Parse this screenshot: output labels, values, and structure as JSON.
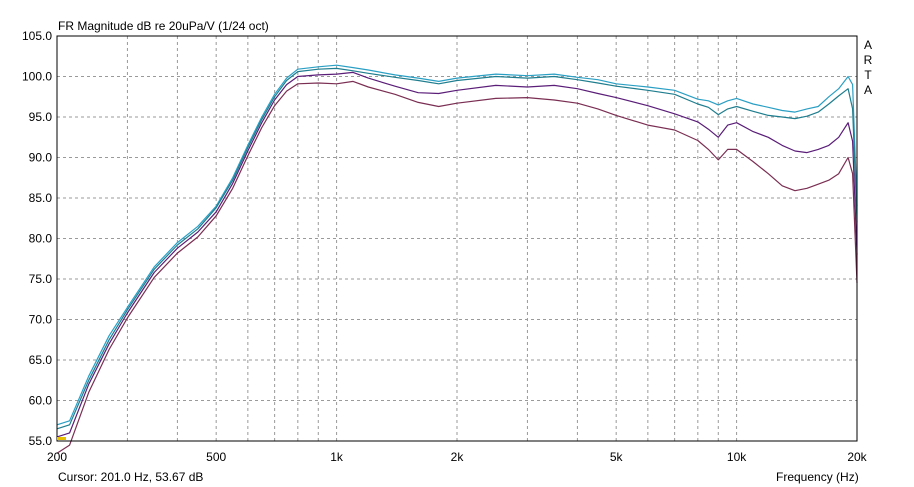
{
  "chart_data": {
    "type": "line",
    "title": "FR Magnitude dB re 20uPa/V (1/24 oct)",
    "xlabel": "Frequency (Hz)",
    "ylabel": "",
    "xscale": "log",
    "xlim": [
      200,
      20000
    ],
    "ylim": [
      55,
      105
    ],
    "grid": true,
    "x_ticks": [
      200,
      500,
      1000,
      2000,
      5000,
      10000,
      20000
    ],
    "x_tick_labels": [
      "200",
      "500",
      "1k",
      "2k",
      "5k",
      "10k",
      "20k"
    ],
    "y_ticks": [
      55,
      60,
      65,
      70,
      75,
      80,
      85,
      90,
      95,
      100,
      105
    ],
    "y_tick_labels": [
      "55.0",
      "60.0",
      "65.0",
      "70.0",
      "75.0",
      "80.0",
      "85.0",
      "90.0",
      "95.0",
      "100.0",
      "105.0"
    ],
    "series": [
      {
        "color": "#2a9fc4",
        "x": [
          200,
          215,
          240,
          270,
          300,
          350,
          400,
          450,
          500,
          550,
          600,
          650,
          700,
          750,
          800,
          900,
          1000,
          1100,
          1200,
          1400,
          1600,
          1800,
          2000,
          2500,
          3000,
          3500,
          4000,
          4500,
          5000,
          6000,
          7000,
          8000,
          8500,
          9000,
          9500,
          10000,
          11000,
          12000,
          13000,
          14000,
          15000,
          16000,
          17000,
          18000,
          19000,
          19500,
          20000
        ],
        "y": [
          57.0,
          57.5,
          63.0,
          68.0,
          71.5,
          76.5,
          79.5,
          81.5,
          84.0,
          87.5,
          91.5,
          95.0,
          97.8,
          99.8,
          100.9,
          101.2,
          101.4,
          101.1,
          100.8,
          100.2,
          99.8,
          99.4,
          99.8,
          100.3,
          100.1,
          100.3,
          99.9,
          99.6,
          99.1,
          98.7,
          98.3,
          97.2,
          97.0,
          96.5,
          97.0,
          97.3,
          96.6,
          96.2,
          95.8,
          95.6,
          96.0,
          96.3,
          97.5,
          98.5,
          100.0,
          99.0,
          84.0
        ]
      },
      {
        "color": "#1e7d8e",
        "x": [
          200,
          215,
          240,
          270,
          300,
          350,
          400,
          450,
          500,
          550,
          600,
          650,
          700,
          750,
          800,
          900,
          1000,
          1100,
          1200,
          1400,
          1600,
          1800,
          2000,
          2500,
          3000,
          3500,
          4000,
          4500,
          5000,
          6000,
          7000,
          8000,
          8500,
          9000,
          9500,
          10000,
          11000,
          12000,
          13000,
          14000,
          15000,
          16000,
          17000,
          18000,
          19000,
          19500,
          20000
        ],
        "y": [
          56.5,
          57.0,
          62.5,
          67.5,
          71.2,
          76.2,
          79.2,
          81.2,
          83.8,
          87.2,
          91.2,
          94.7,
          97.5,
          99.5,
          100.6,
          100.9,
          101.0,
          100.7,
          100.4,
          99.9,
          99.5,
          99.1,
          99.5,
          100.0,
          99.8,
          100.0,
          99.6,
          99.2,
          98.8,
          98.3,
          97.8,
          96.6,
          96.2,
          95.3,
          96.0,
          96.3,
          95.7,
          95.2,
          95.0,
          94.8,
          95.1,
          95.6,
          96.6,
          97.6,
          98.5,
          96.0,
          82.0
        ]
      },
      {
        "color": "#5a1d78",
        "x": [
          200,
          215,
          240,
          270,
          300,
          350,
          400,
          450,
          500,
          550,
          600,
          650,
          700,
          750,
          800,
          900,
          1000,
          1100,
          1200,
          1400,
          1600,
          1800,
          2000,
          2500,
          3000,
          3500,
          4000,
          4500,
          5000,
          6000,
          7000,
          8000,
          8500,
          9000,
          9500,
          10000,
          11000,
          12000,
          13000,
          14000,
          15000,
          16000,
          17000,
          18000,
          19000,
          19500,
          20000
        ],
        "y": [
          55.5,
          56.0,
          62.0,
          67.0,
          70.8,
          75.8,
          78.8,
          80.8,
          83.3,
          86.8,
          90.8,
          94.3,
          97.1,
          99.0,
          100.0,
          100.2,
          100.3,
          100.5,
          99.8,
          98.8,
          98.0,
          97.9,
          98.3,
          98.9,
          98.7,
          98.9,
          98.5,
          97.9,
          97.4,
          96.4,
          95.4,
          94.4,
          93.5,
          92.5,
          94.0,
          94.3,
          93.2,
          92.5,
          91.5,
          90.8,
          90.6,
          91.0,
          91.5,
          92.5,
          94.3,
          92.0,
          78.0
        ]
      },
      {
        "color": "#7a2e52",
        "x": [
          200,
          215,
          240,
          270,
          300,
          350,
          400,
          450,
          500,
          550,
          600,
          650,
          700,
          750,
          800,
          900,
          1000,
          1100,
          1200,
          1400,
          1600,
          1800,
          2000,
          2500,
          3000,
          3500,
          4000,
          4500,
          5000,
          6000,
          7000,
          8000,
          8500,
          9000,
          9500,
          10000,
          11000,
          12000,
          13000,
          14000,
          15000,
          16000,
          17000,
          18000,
          19000,
          19500,
          20000
        ],
        "y": [
          53.5,
          54.5,
          61.0,
          66.3,
          70.2,
          75.2,
          78.2,
          80.2,
          82.8,
          86.2,
          90.2,
          93.7,
          96.4,
          98.2,
          99.1,
          99.2,
          99.1,
          99.4,
          98.7,
          97.8,
          96.8,
          96.3,
          96.7,
          97.3,
          97.4,
          97.1,
          96.7,
          96.0,
          95.2,
          94.0,
          93.4,
          92.1,
          91.0,
          89.7,
          91.0,
          91.0,
          89.5,
          88.0,
          86.5,
          85.9,
          86.2,
          86.7,
          87.2,
          88.0,
          90.0,
          88.0,
          74.5
        ]
      }
    ],
    "annotations": [
      "ARTA"
    ]
  },
  "status": {
    "cursor": "Cursor: 201.0 Hz, 53.67 dB",
    "xlabel": "Frequency (Hz)"
  },
  "logo": [
    "A",
    "R",
    "T",
    "A"
  ]
}
